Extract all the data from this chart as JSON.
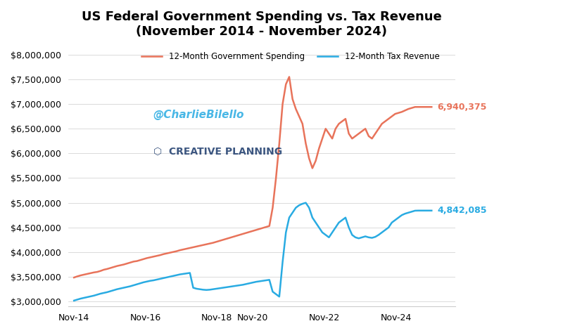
{
  "title": "US Federal Government Spending vs. Tax Revenue\n(November 2014 - November 2024)",
  "spending_label": "12-Month Government Spending",
  "tax_label": "12-Month Tax Revenue",
  "spending_color": "#E8735A",
  "tax_color": "#29ABE2",
  "spending_end_value": "6,940,375",
  "tax_end_value": "4,842,085",
  "ylim": [
    2900000,
    8200000
  ],
  "yticks": [
    3000000,
    3500000,
    4000000,
    4500000,
    5000000,
    5500000,
    6000000,
    6500000,
    7000000,
    7500000,
    8000000
  ],
  "xtick_labels": [
    "Nov-14",
    "Nov-16",
    "Nov-18",
    "Nov-20",
    "Nov-22"
  ],
  "watermark": "@CharlieBilello",
  "sponsor": "CREATIVE PLANNING",
  "background_color": "#FFFFFF",
  "spending_data": [
    3487000,
    3510000,
    3530000,
    3545000,
    3560000,
    3575000,
    3590000,
    3600000,
    3620000,
    3645000,
    3660000,
    3680000,
    3700000,
    3720000,
    3735000,
    3750000,
    3770000,
    3790000,
    3810000,
    3820000,
    3840000,
    3860000,
    3880000,
    3895000,
    3910000,
    3925000,
    3940000,
    3960000,
    3975000,
    3990000,
    4005000,
    4020000,
    4040000,
    4055000,
    4070000,
    4085000,
    4100000,
    4115000,
    4130000,
    4145000,
    4160000,
    4175000,
    4190000,
    4210000,
    4230000,
    4250000,
    4270000,
    4290000,
    4310000,
    4330000,
    4350000,
    4370000,
    4390000,
    4410000,
    4430000,
    4450000,
    4470000,
    4490000,
    4510000,
    4530000,
    4900000,
    5500000,
    6200000,
    7000000,
    7400000,
    7550000,
    7100000,
    6900000,
    6750000,
    6600000,
    6200000,
    5900000,
    5700000,
    5850000,
    6100000,
    6300000,
    6500000,
    6400000,
    6300000,
    6500000,
    6600000,
    6650000,
    6700000,
    6400000,
    6300000,
    6350000,
    6400000,
    6450000,
    6500000,
    6350000,
    6300000,
    6400000,
    6500000,
    6600000,
    6650000,
    6700000,
    6750000,
    6800000,
    6820000,
    6840000,
    6870000,
    6900000,
    6920000,
    6940000,
    6940375,
    6940375,
    6940375,
    6940375,
    6940375
  ],
  "tax_data": [
    3020000,
    3040000,
    3060000,
    3075000,
    3090000,
    3105000,
    3120000,
    3140000,
    3160000,
    3175000,
    3190000,
    3210000,
    3230000,
    3250000,
    3265000,
    3280000,
    3295000,
    3310000,
    3330000,
    3350000,
    3370000,
    3390000,
    3405000,
    3420000,
    3430000,
    3445000,
    3460000,
    3475000,
    3490000,
    3505000,
    3520000,
    3535000,
    3550000,
    3560000,
    3570000,
    3580000,
    3280000,
    3260000,
    3250000,
    3240000,
    3235000,
    3240000,
    3250000,
    3260000,
    3270000,
    3280000,
    3290000,
    3300000,
    3310000,
    3320000,
    3330000,
    3340000,
    3355000,
    3370000,
    3385000,
    3400000,
    3410000,
    3420000,
    3430000,
    3440000,
    3200000,
    3150000,
    3100000,
    3800000,
    4400000,
    4700000,
    4800000,
    4900000,
    4950000,
    4980000,
    5000000,
    4900000,
    4700000,
    4600000,
    4500000,
    4400000,
    4350000,
    4300000,
    4400000,
    4500000,
    4600000,
    4650000,
    4700000,
    4500000,
    4350000,
    4300000,
    4280000,
    4300000,
    4320000,
    4300000,
    4290000,
    4310000,
    4350000,
    4400000,
    4450000,
    4500000,
    4600000,
    4650000,
    4700000,
    4750000,
    4780000,
    4800000,
    4820000,
    4840000,
    4842085,
    4842085,
    4842085,
    4842085,
    4842085
  ]
}
